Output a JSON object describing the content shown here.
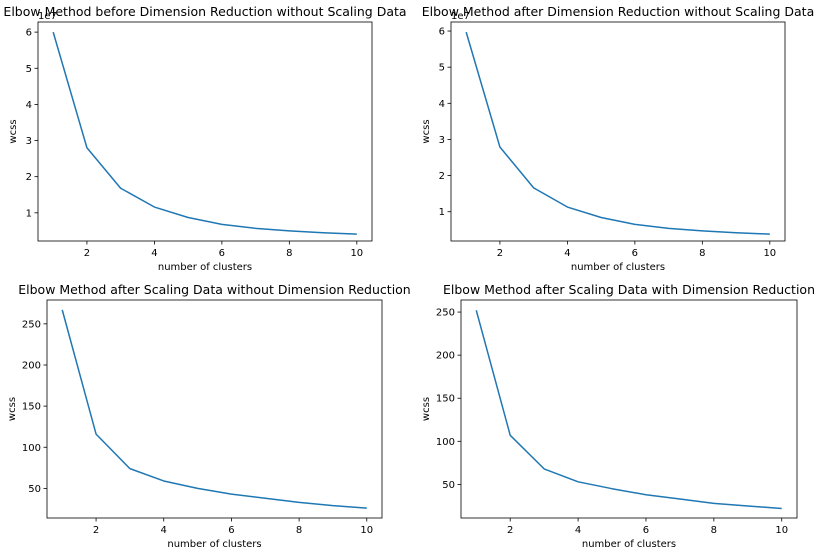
{
  "chart_data": [
    {
      "type": "line",
      "title": "Elbow Method before Dimension Reduction without Scaling Data",
      "xlabel": "number of clusters",
      "ylabel": "wcss",
      "y_offset_label": "1e7",
      "x": [
        1,
        2,
        3,
        4,
        5,
        6,
        7,
        8,
        9,
        10
      ],
      "values": [
        6.0,
        2.8,
        1.68,
        1.16,
        0.87,
        0.68,
        0.57,
        0.5,
        0.45,
        0.41
      ],
      "xlim": [
        0.55,
        10.45
      ],
      "ylim": [
        0.22,
        6.28
      ],
      "xticks": [
        2,
        4,
        6,
        8,
        10
      ],
      "yticks": [
        1,
        2,
        3,
        4,
        5,
        6
      ],
      "grid": false
    },
    {
      "type": "line",
      "title": "Elbow Method after Dimension Reduction without Scaling Data",
      "xlabel": "number of clusters",
      "ylabel": "wcss",
      "y_offset_label": "1e7",
      "x": [
        1,
        2,
        3,
        4,
        5,
        6,
        7,
        8,
        9,
        10
      ],
      "values": [
        5.97,
        2.79,
        1.66,
        1.13,
        0.84,
        0.65,
        0.54,
        0.47,
        0.42,
        0.38
      ],
      "xlim": [
        0.55,
        10.45
      ],
      "ylim": [
        0.19,
        6.25
      ],
      "xticks": [
        2,
        4,
        6,
        8,
        10
      ],
      "yticks": [
        1,
        2,
        3,
        4,
        5,
        6
      ],
      "grid": false
    },
    {
      "type": "line",
      "title": "Elbow Method after Scaling Data without Dimension Reduction",
      "xlabel": "number of clusters",
      "ylabel": "wcss",
      "x": [
        1,
        2,
        3,
        4,
        5,
        6,
        7,
        8,
        9,
        10
      ],
      "values": [
        267,
        116,
        74,
        59,
        50,
        43,
        38,
        33,
        29,
        26
      ],
      "xlim": [
        0.55,
        10.45
      ],
      "ylim": [
        14,
        279
      ],
      "xticks": [
        2,
        4,
        6,
        8,
        10
      ],
      "yticks": [
        50,
        100,
        150,
        200,
        250
      ],
      "grid": false
    },
    {
      "type": "line",
      "title": "Elbow Method after Scaling Data with Dimension Reduction",
      "xlabel": "number of clusters",
      "ylabel": "wcss",
      "x": [
        1,
        2,
        3,
        4,
        5,
        6,
        7,
        8,
        9,
        10
      ],
      "values": [
        252,
        107,
        68,
        53,
        45,
        38,
        33,
        28,
        25,
        22
      ],
      "xlim": [
        0.55,
        10.45
      ],
      "ylim": [
        11,
        264
      ],
      "xticks": [
        2,
        4,
        6,
        8,
        10
      ],
      "yticks": [
        50,
        100,
        150,
        200,
        250
      ],
      "grid": false
    }
  ]
}
